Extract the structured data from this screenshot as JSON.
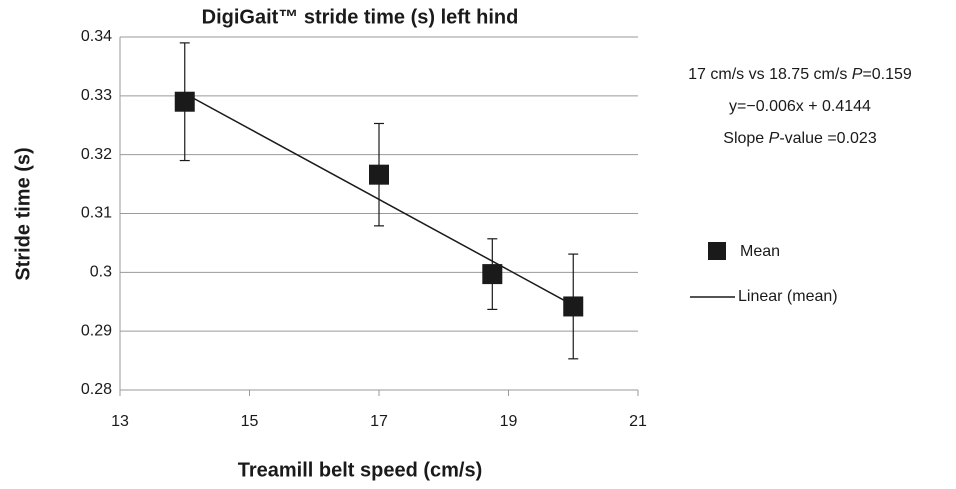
{
  "chart_data": {
    "type": "scatter",
    "title": "DigiGait™ stride time (s) left hind",
    "x_label": "Treamill belt speed (cm/s)",
    "y_label": "Stride time (s)",
    "xlim": [
      13,
      21
    ],
    "xticks": [
      13,
      15,
      17,
      19,
      21
    ],
    "ylim": [
      0.28,
      0.34
    ],
    "yticks": [
      0.28,
      0.29,
      0.3,
      0.31,
      0.32,
      0.33,
      0.34
    ],
    "grid": true,
    "legend": "right",
    "series": [
      {
        "name": "Mean",
        "color": "#1a1a1a",
        "x": [
          14,
          17,
          18.75,
          20
        ],
        "values": [
          0.329,
          0.3166,
          0.2997,
          0.2942
        ],
        "errors": [
          0.01,
          0.0087,
          0.006,
          0.0089
        ]
      },
      {
        "name": "Linear (mean)",
        "color": "#1a1a1a",
        "x": [
          14,
          20
        ],
        "values": [
          0.3304,
          0.2944
        ]
      }
    ],
    "annotations": [
      {
        "parts": [
          "17 cm/s vs 18.75 cm/s ",
          "P",
          "=0.159"
        ]
      },
      {
        "parts": [
          "y=−0.006x + 0.4144"
        ]
      },
      {
        "parts": [
          "Slope ",
          "P",
          "-value =0.023"
        ]
      }
    ]
  }
}
